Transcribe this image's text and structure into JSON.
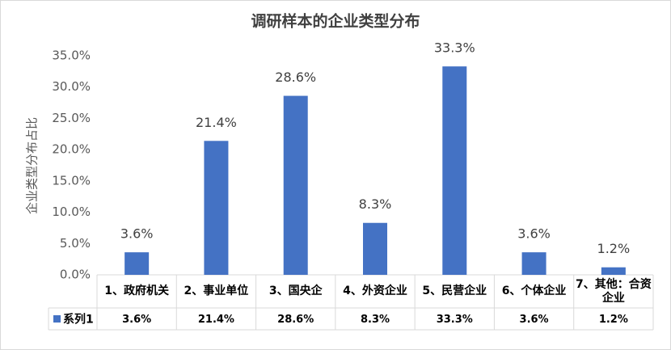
{
  "chart_data": {
    "type": "bar",
    "title": "调研样本的企业类型分布",
    "y_label": "企业类型分布占比",
    "categories": [
      "1、政府机关",
      "2、事业单位",
      "3、国央企",
      "4、外资企业",
      "5、民营企业",
      "6、个体企业",
      "7、其他：合资企业"
    ],
    "series": [
      {
        "name": "系列1",
        "color": "#4472c4",
        "values": [
          3.6,
          21.4,
          28.6,
          8.3,
          33.3,
          3.6,
          1.2
        ],
        "value_labels": [
          "3.6%",
          "21.4%",
          "28.6%",
          "8.3%",
          "33.3%",
          "3.6%",
          "1.2%"
        ]
      }
    ],
    "ylim": [
      0,
      35
    ],
    "yticks": [
      {
        "value": 0,
        "label": "0.0%"
      },
      {
        "value": 5,
        "label": "5.0%"
      },
      {
        "value": 10,
        "label": "10.0%"
      },
      {
        "value": 15,
        "label": "15.0%"
      },
      {
        "value": 20,
        "label": "20.0%"
      },
      {
        "value": 25,
        "label": "25.0%"
      },
      {
        "value": 30,
        "label": "30.0%"
      },
      {
        "value": 35,
        "label": "35.0%"
      }
    ],
    "grid": false,
    "data_table": true
  }
}
